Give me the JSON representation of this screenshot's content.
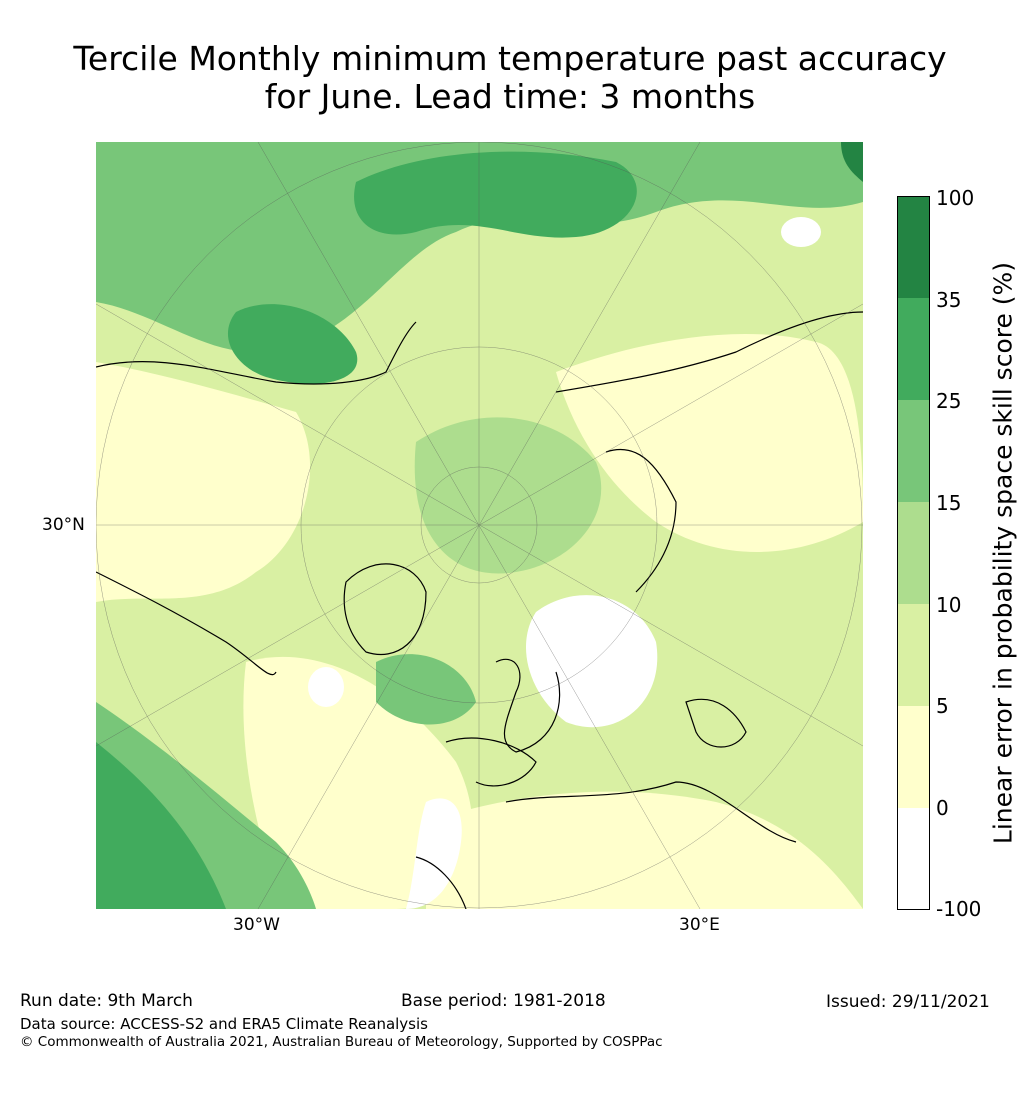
{
  "title_line1": "Tercile Monthly minimum temperature past accuracy",
  "title_line2": "for June. Lead time: 3 months",
  "map": {
    "lat_label": "30°N",
    "lon_labels": [
      "30°W",
      "30°E"
    ],
    "colors": {
      "ocean_low": "#ffffcc",
      "light": "#d9f0a3",
      "mid": "#addd8e",
      "mid2": "#78c679",
      "high": "#41ab5d",
      "top": "#238443",
      "none": "#ffffff",
      "coast": "#000000"
    }
  },
  "colorbar": {
    "label": "Linear error in probability space skill score (%)",
    "ticks": [
      "100",
      "35",
      "25",
      "15",
      "10",
      "5",
      "0",
      "-100"
    ],
    "bins": [
      {
        "from": -100,
        "to": 0,
        "color": "#ffffff"
      },
      {
        "from": 0,
        "to": 5,
        "color": "#ffffcc"
      },
      {
        "from": 5,
        "to": 10,
        "color": "#d9f0a3"
      },
      {
        "from": 10,
        "to": 15,
        "color": "#addd8e"
      },
      {
        "from": 15,
        "to": 25,
        "color": "#78c679"
      },
      {
        "from": 25,
        "to": 35,
        "color": "#41ab5d"
      },
      {
        "from": 35,
        "to": 100,
        "color": "#238443"
      }
    ]
  },
  "footer": {
    "run_date": "Run date: 9th March",
    "base_period": "Base period: 1981-2018",
    "issued": "Issued: 29/11/2021",
    "data_source": "Data source: ACCESS-S2 and ERA5 Climate Reanalysis",
    "copyright": "© Commonwealth of Australia 2021, Australian Bureau of Meteorology, Supported by COSPPac"
  }
}
